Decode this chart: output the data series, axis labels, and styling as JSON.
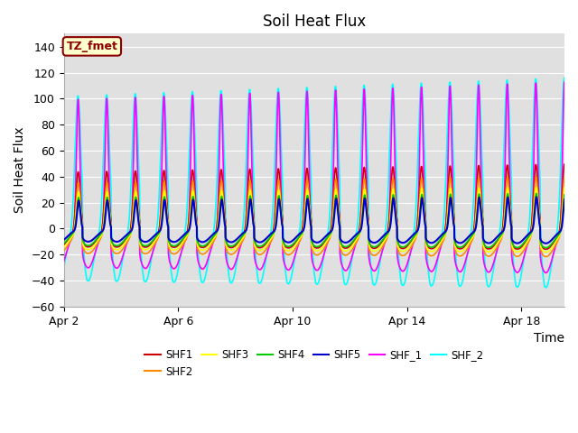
{
  "title": "Soil Heat Flux",
  "xlabel": "Time",
  "ylabel": "Soil Heat Flux",
  "xlim_days": [
    0,
    17.5
  ],
  "ylim": [
    -60,
    150
  ],
  "yticks": [
    -60,
    -40,
    -20,
    0,
    20,
    40,
    60,
    80,
    100,
    120,
    140
  ],
  "xtick_labels": [
    "Apr 2",
    "Apr 6",
    "Apr 10",
    "Apr 14",
    "Apr 18"
  ],
  "xtick_positions": [
    0,
    4,
    8,
    12,
    16
  ],
  "series_colors": {
    "SHF1": "#cc0000",
    "SHF2": "#ff8800",
    "SHF3": "#ffff00",
    "SHF4": "#00cc00",
    "SHF5": "#0000cc",
    "SHF_1": "#ff00ff",
    "SHF_2": "#00ffff"
  },
  "legend_label": "TZ_fmet",
  "plot_bg_color": "#e0e0e0",
  "grid_color": "#ffffff",
  "title_fontsize": 12,
  "label_fontsize": 10,
  "tick_fontsize": 9
}
